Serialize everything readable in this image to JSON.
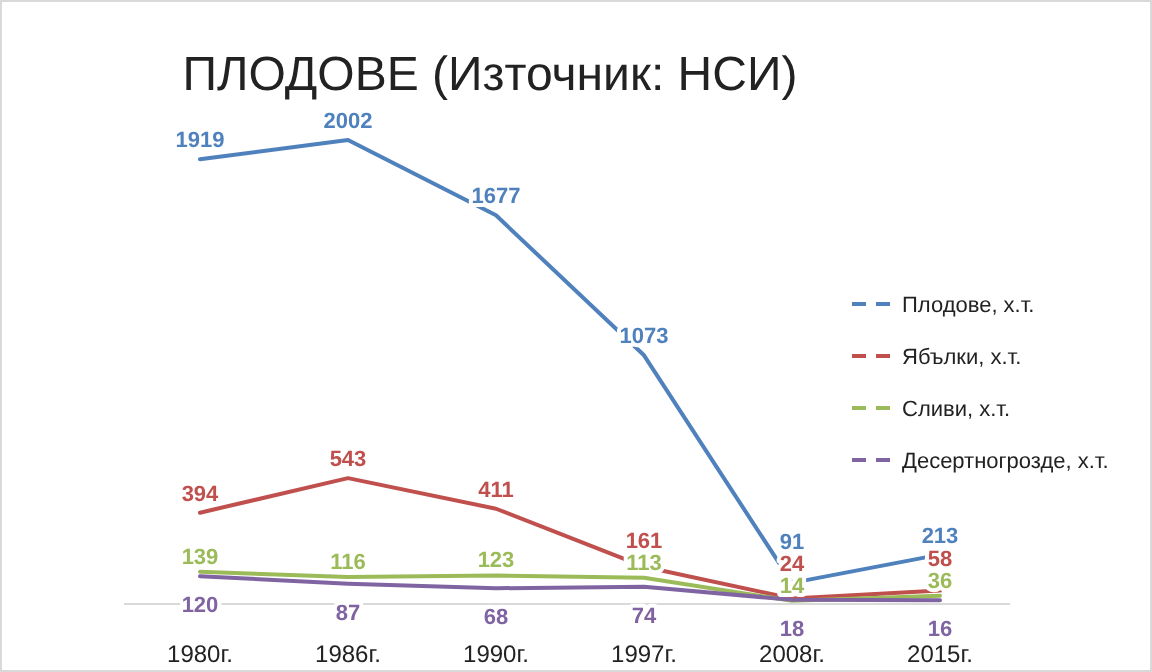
{
  "chart_data": {
    "type": "line",
    "title": "ПЛОДОВЕ (Източник: НСИ)",
    "categories": [
      "1980г.",
      "1986г.",
      "1990г.",
      "1997г.",
      "2008г.",
      "2015г."
    ],
    "series": [
      {
        "name": "Плодове, х.т.",
        "color": "#4f81bd",
        "values": [
          1919,
          2002,
          1677,
          1073,
          91,
          213
        ]
      },
      {
        "name": "Ябълки, х.т.",
        "color": "#c0504d",
        "values": [
          394,
          543,
          411,
          161,
          24,
          58
        ]
      },
      {
        "name": "Сливи,  х.т.",
        "color": "#9bbb59",
        "values": [
          139,
          116,
          123,
          113,
          14,
          36
        ]
      },
      {
        "name": "Десертногрозде, х.т.",
        "color": "#8064a2",
        "values": [
          120,
          87,
          68,
          74,
          18,
          16
        ]
      }
    ],
    "data_labels": true,
    "legend": "right",
    "grid": false,
    "marker": "none",
    "line_style": "solid"
  }
}
